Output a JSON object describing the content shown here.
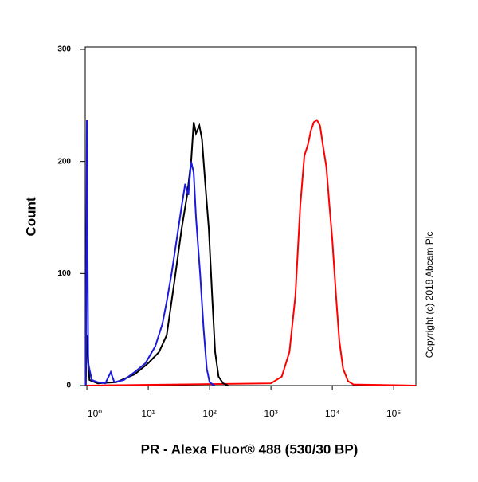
{
  "chart_data": {
    "type": "line",
    "x_axis_label": "PR - Alexa Fluor® 488 (530/30 BP)",
    "y_axis_label": "Count",
    "annotation": "Copyright (c) 2018 Abcam Plc",
    "xscale": "log",
    "xlim": [
      0.94,
      230000
    ],
    "ylim": [
      0,
      300
    ],
    "xticks": [
      {
        "value": 1,
        "label": "10⁰"
      },
      {
        "value": 10,
        "label": "10¹"
      },
      {
        "value": 100,
        "label": "10²"
      },
      {
        "value": 1000,
        "label": "10³"
      },
      {
        "value": 10000,
        "label": "10⁴"
      },
      {
        "value": 100000,
        "label": "10⁵"
      }
    ],
    "yticks": [
      0,
      100,
      200,
      300
    ],
    "series": [
      {
        "color": "#ff0000",
        "x": [
          0.94,
          1000,
          1500,
          2000,
          2500,
          3000,
          3500,
          4000,
          4500,
          5000,
          5600,
          6300,
          7000,
          8000,
          9000,
          10000,
          11500,
          13000,
          15000,
          18000,
          22000,
          230000
        ],
        "values": [
          0,
          2,
          8,
          30,
          80,
          160,
          205,
          215,
          228,
          235,
          237,
          232,
          215,
          195,
          160,
          130,
          80,
          40,
          15,
          4,
          1,
          0
        ]
      },
      {
        "color": "#000000",
        "x": [
          0.96,
          1,
          1.1,
          1.5,
          3,
          6,
          10,
          15,
          20,
          27,
          35,
          43,
          50,
          55,
          60,
          68,
          75,
          85,
          97,
          110,
          123,
          140,
          166,
          200
        ],
        "values": [
          0,
          45,
          5,
          2,
          3,
          10,
          20,
          30,
          45,
          95,
          140,
          170,
          200,
          235,
          225,
          232,
          220,
          180,
          140,
          80,
          30,
          8,
          2,
          0
        ]
      },
      {
        "color": "#1a1adc",
        "x": [
          0.96,
          1,
          1.05,
          1.2,
          1.5,
          2,
          2.45,
          2.8,
          4,
          6,
          9,
          13,
          17,
          20,
          24,
          29,
          35,
          40,
          45,
          50,
          55,
          60,
          70,
          80,
          90,
          100,
          120
        ],
        "values": [
          0,
          237,
          20,
          5,
          3,
          2,
          12,
          3,
          5,
          12,
          20,
          35,
          55,
          75,
          100,
          130,
          160,
          180,
          170,
          200,
          190,
          150,
          100,
          50,
          15,
          3,
          0
        ]
      }
    ]
  }
}
